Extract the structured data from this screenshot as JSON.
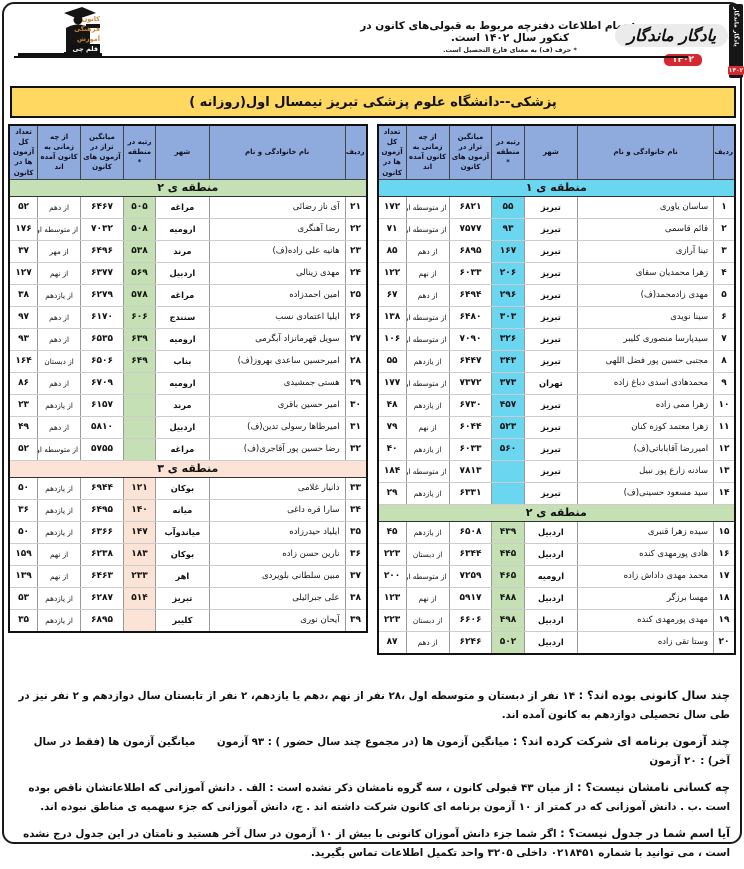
{
  "header": {
    "note_main": "توجه: تمام اطلاعات دفترچه مربوط به قبولی‌های کانون در کنکور سال ۱۴۰۲ است.",
    "note_sub": "* حرف (ف) به معنای فارغ التحصیل است.",
    "brand_name": "یادگار ماندگار",
    "brand_year": "۱۴۰۲",
    "side_strip_text": "یادگار ماندگار",
    "side_strip_year": "۱۴۰۲",
    "logo_lines": [
      "کانون",
      "فرهنگی",
      "آموزش",
      "قلم چی"
    ]
  },
  "title": "پزشکی--دانشگاه علوم پزشکی تبریز نیمسال اول(روزانه )",
  "columns": [
    "ردیف",
    "نام خانوادگی و نام",
    "شهر",
    "رتبه در منطقه *",
    "میانگین تراز در آزمون های کانون",
    "از چه زمانی به کانون آمده اند",
    "تعداد کل آزمون ها در کانون"
  ],
  "colors": {
    "header_bg": "#8FAADC",
    "title_bg": "#FFD861",
    "region1": "#6BD6F0",
    "region2": "#C5E0B4",
    "region3": "#FBE3D6"
  },
  "tables": [
    {
      "side": "right",
      "sections": [
        {
          "label": "منطقه ی ۱",
          "color_key": "region1",
          "rows": [
            {
              "no": "۱",
              "name": "ساسان یاوری",
              "city": "تبریز",
              "rank": "۵۵",
              "avg": "۶۸۲۱",
              "since": "از متوسطه اول",
              "total": "۱۷۲"
            },
            {
              "no": "۲",
              "name": "قائم قاسمی",
              "city": "تبریز",
              "rank": "۹۳",
              "avg": "۷۵۷۷",
              "since": "از متوسطه اول",
              "total": "۷۱"
            },
            {
              "no": "۳",
              "name": "تینا آرازی",
              "city": "تبریز",
              "rank": "۱۶۷",
              "avg": "۶۸۹۵",
              "since": "از دهم",
              "total": "۸۵"
            },
            {
              "no": "۴",
              "name": "زهرا محمدیان سقای",
              "city": "تبریز",
              "rank": "۲۰۶",
              "avg": "۶۰۳۳",
              "since": "از نهم",
              "total": "۱۲۲"
            },
            {
              "no": "۵",
              "name": "مهدی زادمحمد(ف)",
              "city": "تبریز",
              "rank": "۲۹۶",
              "avg": "۶۴۹۴",
              "since": "از دهم",
              "total": "۶۷"
            },
            {
              "no": "۶",
              "name": "سینا نویدی",
              "city": "تبریز",
              "rank": "۳۰۳",
              "avg": "۶۴۸۰",
              "since": "از متوسطه اول",
              "total": "۱۳۸"
            },
            {
              "no": "۷",
              "name": "سیدپارسا منصوری کلیبر",
              "city": "تبریز",
              "rank": "۳۲۶",
              "avg": "۷۰۹۰",
              "since": "از متوسطه اول",
              "total": "۱۰۶"
            },
            {
              "no": "۸",
              "name": "مجتبی حسین پور فضل اللهی",
              "city": "تبریز",
              "rank": "۳۴۳",
              "avg": "۶۴۴۷",
              "since": "از یازدهم",
              "total": "۵۵"
            },
            {
              "no": "۹",
              "name": "محمدهادی اسدی دباغ زاده",
              "city": "تهران",
              "rank": "۳۷۳",
              "avg": "۷۳۷۲",
              "since": "از متوسطه اول",
              "total": "۱۷۷"
            },
            {
              "no": "۱۰",
              "name": "زهرا ممی زاده",
              "city": "تبریز",
              "rank": "۴۵۷",
              "avg": "۶۷۳۰",
              "since": "از یازدهم",
              "total": "۴۸"
            },
            {
              "no": "۱۱",
              "name": "زهرا معتمد کوزه کنان",
              "city": "تبریز",
              "rank": "۵۲۳",
              "avg": "۶۰۴۴",
              "since": "از نهم",
              "total": "۷۹"
            },
            {
              "no": "۱۲",
              "name": "امیررضا آقاباباتی(ف)",
              "city": "تبریز",
              "rank": "۵۶۰",
              "avg": "۶۰۳۳",
              "since": "از یازدهم",
              "total": "۴۰"
            },
            {
              "no": "۱۳",
              "name": "سادنه زارع پور نبیل",
              "city": "تبریز",
              "rank": "",
              "avg": "۷۸۱۳",
              "since": "از متوسطه اول",
              "total": "۱۸۴"
            },
            {
              "no": "۱۴",
              "name": "سید مسعود حسینی(ف)",
              "city": "تبریز",
              "rank": "",
              "avg": "۶۳۳۱",
              "since": "از یازدهم",
              "total": "۲۹"
            }
          ]
        },
        {
          "label": "منطقه ی ۲",
          "color_key": "region2",
          "rows": [
            {
              "no": "۱۵",
              "name": "سیده زهرا قنبری",
              "city": "اردبیل",
              "rank": "۴۳۹",
              "avg": "۶۵۰۸",
              "since": "از یازدهم",
              "total": "۴۵"
            },
            {
              "no": "۱۶",
              "name": "هادی پورمهدی کنده",
              "city": "اردبیل",
              "rank": "۴۴۵",
              "avg": "۶۳۴۴",
              "since": "از دبستان",
              "total": "۲۲۳"
            },
            {
              "no": "۱۷",
              "name": "محمد مهدی داداش زاده",
              "city": "ارومیه",
              "rank": "۴۶۵",
              "avg": "۷۲۵۹",
              "since": "از متوسطه اول",
              "total": "۲۰۰"
            },
            {
              "no": "۱۸",
              "name": "مهسا برزگر",
              "city": "اردبیل",
              "rank": "۴۸۸",
              "avg": "۵۹۱۷",
              "since": "از نهم",
              "total": "۱۲۳"
            },
            {
              "no": "۱۹",
              "name": "مهدی پورمهدی کنده",
              "city": "اردبیل",
              "rank": "۴۹۸",
              "avg": "۶۶۰۶",
              "since": "از دبستان",
              "total": "۲۲۳"
            },
            {
              "no": "۲۰",
              "name": "وستا تقی زاده",
              "city": "اردبیل",
              "rank": "۵۰۲",
              "avg": "۶۲۴۶",
              "since": "از دهم",
              "total": "۸۷"
            }
          ]
        }
      ]
    },
    {
      "side": "left",
      "sections": [
        {
          "label": "منطقه ی ۲",
          "color_key": "region2",
          "rows": [
            {
              "no": "۲۱",
              "name": "آی ناز رضائی",
              "city": "مراغه",
              "rank": "۵۰۵",
              "avg": "۶۴۶۷",
              "since": "از دهم",
              "total": "۵۲"
            },
            {
              "no": "۲۲",
              "name": "رضا آهنگری",
              "city": "ارومیه",
              "rank": "۵۰۸",
              "avg": "۷۰۳۲",
              "since": "از متوسطه اول",
              "total": "۱۷۶"
            },
            {
              "no": "۲۳",
              "name": "هانیه علی زاده(ف)",
              "city": "مرند",
              "rank": "۵۳۸",
              "avg": "۶۴۹۶",
              "since": "از مهر",
              "total": "۳۷"
            },
            {
              "no": "۲۴",
              "name": "مهدی زینالی",
              "city": "اردبیل",
              "rank": "۵۶۹",
              "avg": "۶۳۷۷",
              "since": "از نهم",
              "total": "۱۲۷"
            },
            {
              "no": "۲۵",
              "name": "امین احمدزاده",
              "city": "مراغه",
              "rank": "۵۷۸",
              "avg": "۶۲۷۹",
              "since": "از یازدهم",
              "total": "۳۸"
            },
            {
              "no": "۲۶",
              "name": "ایلیا اعتمادی نسب",
              "city": "سنندج",
              "rank": "۶۰۶",
              "avg": "۶۱۷۰",
              "since": "از دهم",
              "total": "۹۷"
            },
            {
              "no": "۲۷",
              "name": "سویل قهرمانزاد آبگرمی",
              "city": "ارومیه",
              "rank": "۶۳۹",
              "avg": "۶۵۳۵",
              "since": "از دهم",
              "total": "۹۳"
            },
            {
              "no": "۲۸",
              "name": "امیرحسین ساعدی بهروز(ف)",
              "city": "بناب",
              "rank": "۶۴۹",
              "avg": "۶۵۰۶",
              "since": "از دبستان",
              "total": "۱۶۴"
            },
            {
              "no": "۲۹",
              "name": "هستی جمشیدی",
              "city": "ارومیه",
              "rank": "",
              "avg": "۶۷۰۹",
              "since": "از دهم",
              "total": "۸۶"
            },
            {
              "no": "۳۰",
              "name": "امیر حسین باقری",
              "city": "مرند",
              "rank": "",
              "avg": "۶۱۵۷",
              "since": "از یازدهم",
              "total": "۲۳"
            },
            {
              "no": "۳۱",
              "name": "امیرطاها رسولی تدین(ف)",
              "city": "اردبیل",
              "rank": "",
              "avg": "۵۸۱۰",
              "since": "از دهم",
              "total": "۴۹"
            },
            {
              "no": "۳۲",
              "name": "رضا حسین پور آقاجری(ف)",
              "city": "مراغه",
              "rank": "",
              "avg": "۵۷۵۵",
              "since": "از متوسطه اول",
              "total": "۵۲"
            }
          ]
        },
        {
          "label": "منطقه ی ۳",
          "color_key": "region3",
          "rows": [
            {
              "no": "۳۳",
              "name": "دانیار غلامی",
              "city": "بوکان",
              "rank": "۱۲۱",
              "avg": "۶۹۴۴",
              "since": "از یازدهم",
              "total": "۵۰"
            },
            {
              "no": "۳۴",
              "name": "سارا قره داغی",
              "city": "میانه",
              "rank": "۱۴۰",
              "avg": "۶۴۹۵",
              "since": "از یازدهم",
              "total": "۳۶"
            },
            {
              "no": "۳۵",
              "name": "ایلیاد حیدرزاده",
              "city": "میاندوآب",
              "rank": "۱۴۷",
              "avg": "۶۳۶۶",
              "since": "از یازدهم",
              "total": "۵۰"
            },
            {
              "no": "۳۶",
              "name": "نارین حسن زاده",
              "city": "بوکان",
              "rank": "۱۸۳",
              "avg": "۶۲۳۸",
              "since": "از نهم",
              "total": "۱۵۹"
            },
            {
              "no": "۳۷",
              "name": "مبین سلطانی بلویردی",
              "city": "اهر",
              "rank": "۲۳۳",
              "avg": "۶۴۶۳",
              "since": "از نهم",
              "total": "۱۳۹"
            },
            {
              "no": "۳۸",
              "name": "علی جبرائیلی",
              "city": "تبریز",
              "rank": "۵۱۴",
              "avg": "۶۲۸۷",
              "since": "از یازدهم",
              "total": "۵۳"
            },
            {
              "no": "۳۹",
              "name": "آیحان نوری",
              "city": "کلیبر",
              "rank": "",
              "avg": "۶۸۹۵",
              "since": "از یازدهم",
              "total": "۳۵"
            }
          ]
        }
      ]
    }
  ],
  "footer": {
    "paragraphs": [
      {
        "lead": "چند سال کانونی بوده اند؟ :",
        "text": " ۱۴ نفر از دبستان و متوسطه اول ،۲۸ نفر از نهم ،دهم یا یازدهم، ۲ نفر از تابستان سال دوازدهم و ۲ نفر نیز در طی سال تحصیلی دوازدهم به کانون آمده اند."
      },
      {
        "lead": "چند آزمون برنامه ای شرکت کرده اند؟ :",
        "text": " میانگین آزمون ها (در مجموع چند سال حضور ) : ۹۳ آزمون      میانگین آزمون ها (فقط در سال آخر) : ۲۰ آزمون"
      },
      {
        "lead": "چه کسانی نامشان نیست؟ :",
        "text": " از میان ۴۳ قبولی کانون ، سه گروه نامشان ذکر نشده است : الف . دانش آموزانی که اطلاعاتشان ناقص بوده است .ب . دانش آموزانی که در کمتر از ۱۰ آزمون برنامه ای کانون شرکت داشته اند . ج، دانش آموزانی که جزء سهمیه ی مناطق نبوده اند."
      },
      {
        "lead": "آیا اسم شما در جدول نیست؟ :",
        "text": " اگر شما جزء دانش آموزان کانونی با بیش از ۱۰ آزمون در سال آخر هستید و نامتان در این جدول درج نشده است ، می توانید با شماره ۰۲۱۸۴۵۱ داخلی ۳۲۰۵ واحد تکمیل اطلاعات تماس بگیرید."
      }
    ]
  }
}
